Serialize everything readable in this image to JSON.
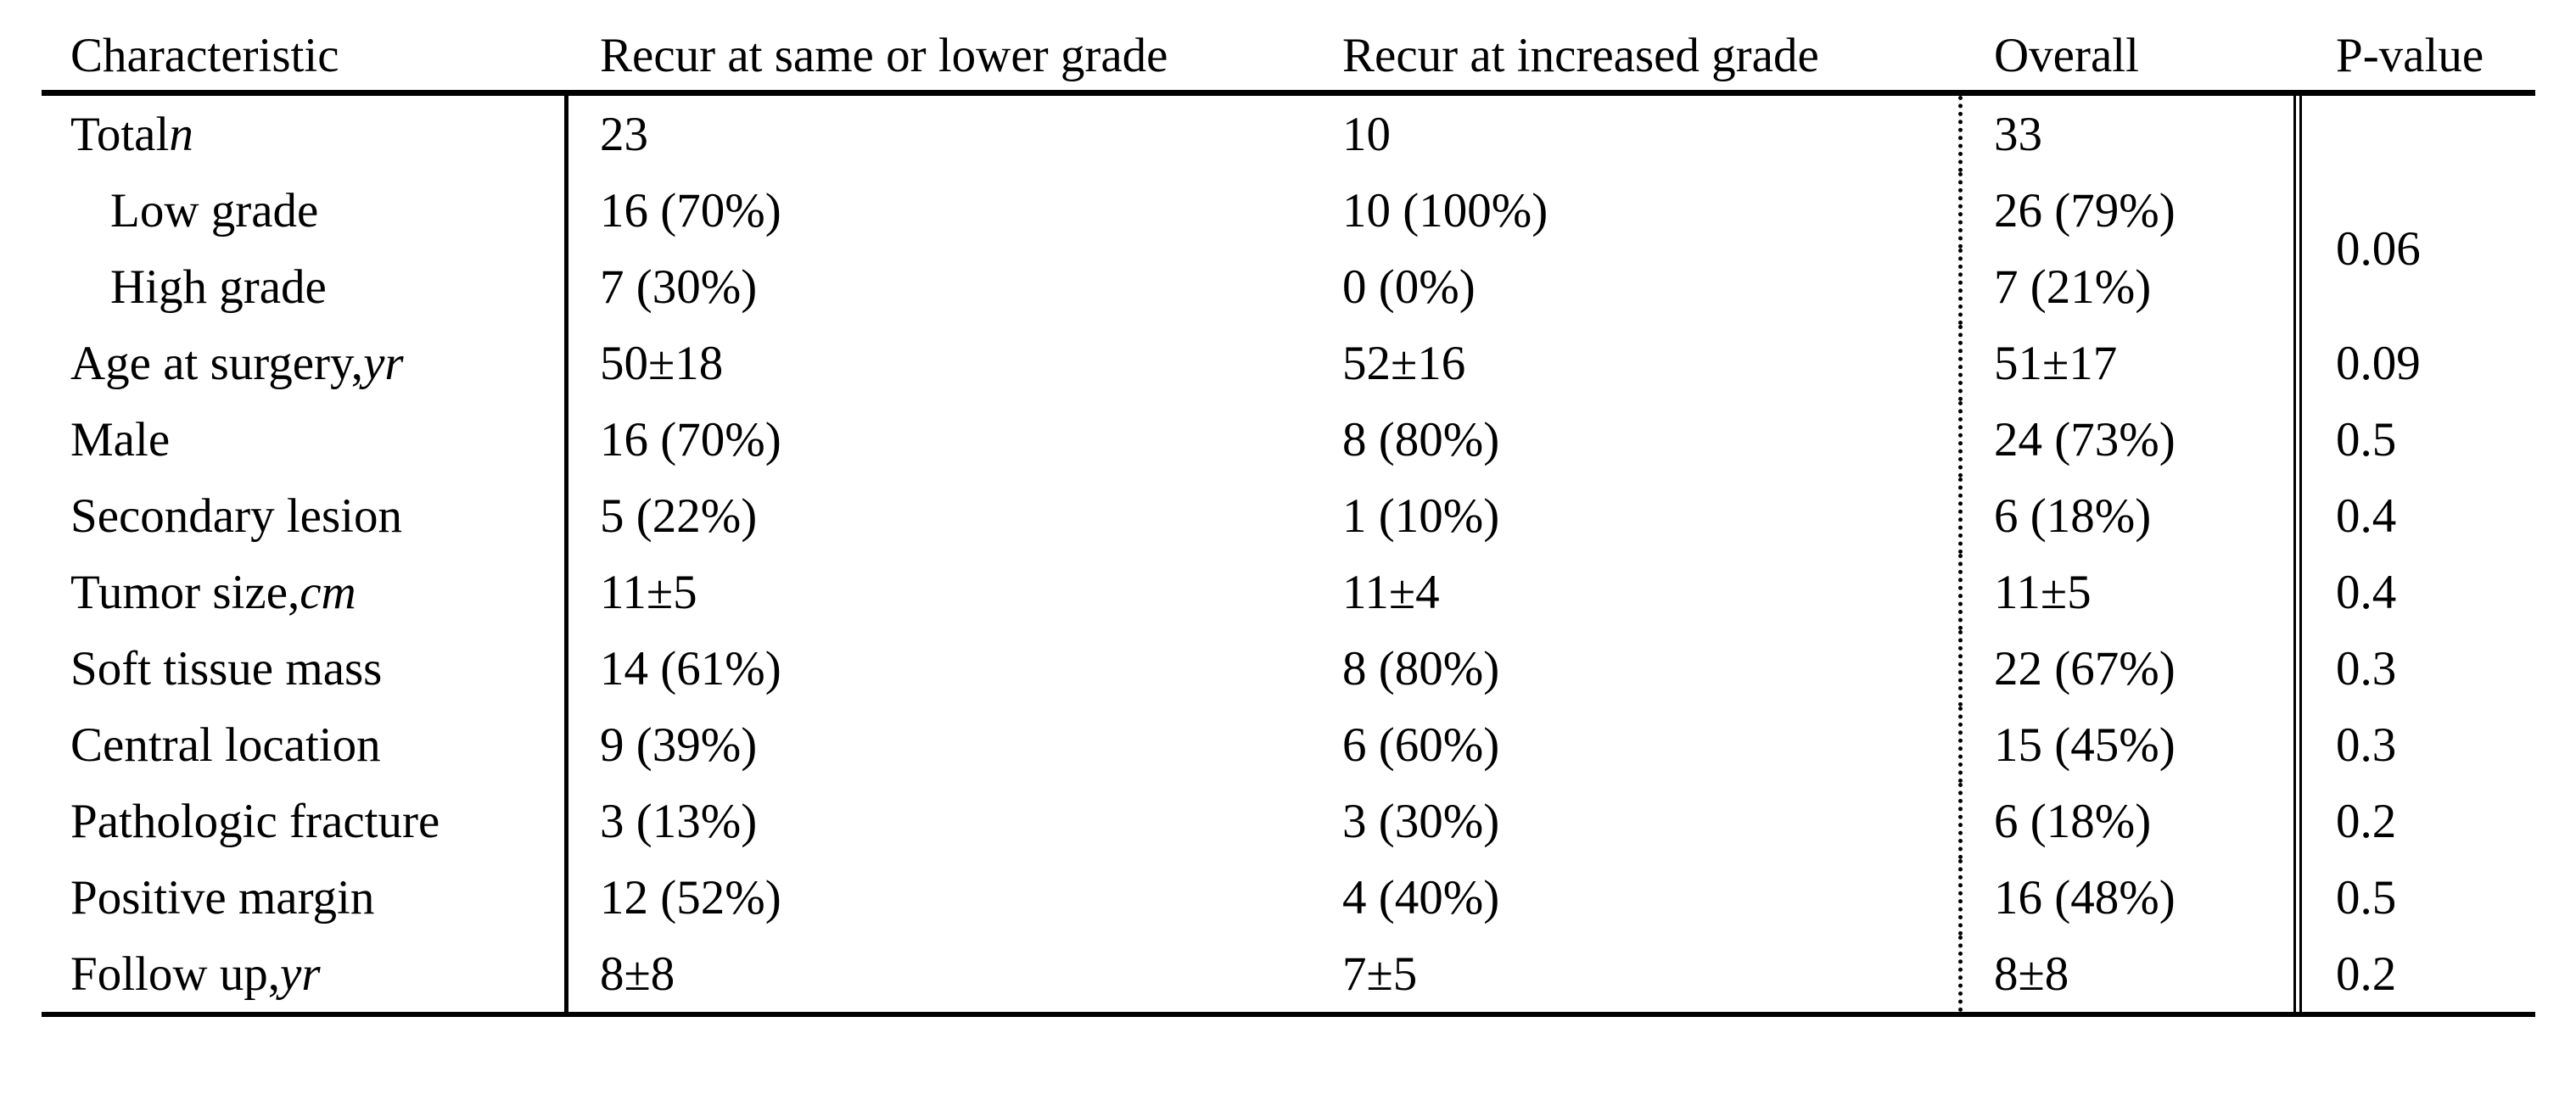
{
  "table": {
    "type": "table",
    "header": {
      "characteristic": "Characteristic",
      "same_lower": "Recur at same or lower grade",
      "increased": "Recur at increased grade",
      "overall": "Overall",
      "p_value": "P-value"
    },
    "rows": [
      {
        "label": "Total ",
        "label_italic": "n",
        "same_lower": "23",
        "increased": "10",
        "overall": "33",
        "p": ""
      },
      {
        "label": "Low grade",
        "label_italic": "",
        "same_lower": "16 (70%)",
        "increased": "10 (100%)",
        "overall": "26 (79%)",
        "p": "0.06"
      },
      {
        "label": "High grade",
        "label_italic": "",
        "same_lower": "7 (30%)",
        "increased": "0 (0%)",
        "overall": "7 (21%)"
      },
      {
        "label": "Age at surgery, ",
        "label_italic": "yr",
        "same_lower": "50±18",
        "increased": "52±16",
        "overall": "51±17",
        "p": "0.09"
      },
      {
        "label": "Male",
        "label_italic": "",
        "same_lower": "16 (70%)",
        "increased": "8 (80%)",
        "overall": "24 (73%)",
        "p": "0.5"
      },
      {
        "label": "Secondary lesion",
        "label_italic": "",
        "same_lower": "5 (22%)",
        "increased": "1 (10%)",
        "overall": "6 (18%)",
        "p": "0.4"
      },
      {
        "label": "Tumor size, ",
        "label_italic": "cm",
        "same_lower": "11±5",
        "increased": "11±4",
        "overall": "11±5",
        "p": "0.4"
      },
      {
        "label": "Soft tissue mass",
        "label_italic": "",
        "same_lower": "14 (61%)",
        "increased": "8 (80%)",
        "overall": "22 (67%)",
        "p": "0.3"
      },
      {
        "label": "Central location",
        "label_italic": "",
        "same_lower": "9 (39%)",
        "increased": "6 (60%)",
        "overall": "15 (45%)",
        "p": "0.3"
      },
      {
        "label": "Pathologic fracture",
        "label_italic": "",
        "same_lower": "3 (13%)",
        "increased": "3 (30%)",
        "overall": "6 (18%)",
        "p": "0.2"
      },
      {
        "label": "Positive margin",
        "label_italic": "",
        "same_lower": "12 (52%)",
        "increased": "4 (40%)",
        "overall": "16 (48%)",
        "p": "0.5"
      },
      {
        "label": "Follow up, ",
        "label_italic": "yr",
        "same_lower": "8±8",
        "increased": "7±5",
        "overall": "8±8",
        "p": "0.2"
      }
    ],
    "colors": {
      "text": "#000000",
      "background": "#ffffff",
      "rule": "#000000"
    }
  }
}
